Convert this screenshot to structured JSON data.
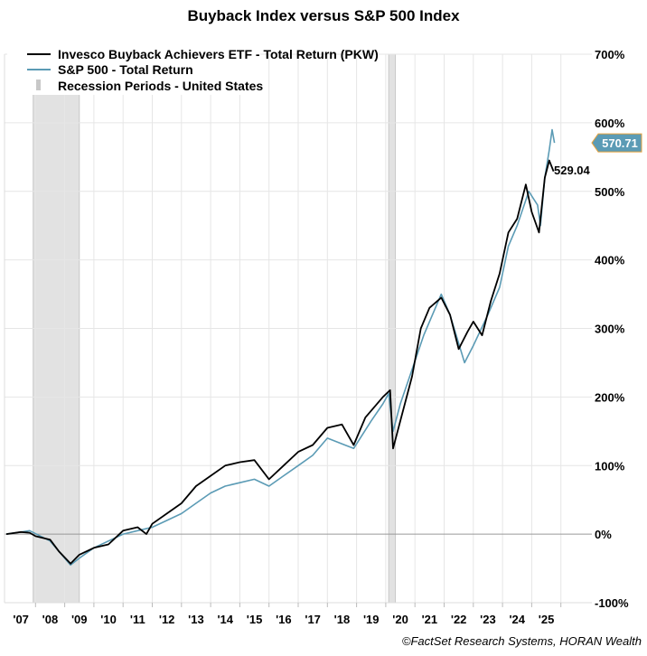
{
  "chart_data": {
    "type": "line",
    "title": "Buyback Index versus S&P 500 Index",
    "source": "©FactSet Research Systems, HORAN Wealth",
    "xlabel": "",
    "ylabel": "",
    "xlim": [
      2007,
      2027
    ],
    "ylim": [
      -100,
      700
    ],
    "y_ticks": [
      "700%",
      "600%",
      "500%",
      "400%",
      "300%",
      "200%",
      "100%",
      "0%",
      "-100%"
    ],
    "y_tick_values": [
      700,
      600,
      500,
      400,
      300,
      200,
      100,
      0,
      -100
    ],
    "x_tick_labels": [
      "'07",
      "'08",
      "'09",
      "'10",
      "'11",
      "'12",
      "'13",
      "'14",
      "'15",
      "'16",
      "'17",
      "'18",
      "'19",
      "'20",
      "'21",
      "'22",
      "'23",
      "'24",
      "'25"
    ],
    "grid": true,
    "legend_position": "top-left",
    "recessions": [
      {
        "name": "Recession Periods - United States",
        "start": 2007.92,
        "end": 2009.5
      },
      {
        "name": "Recession Periods - United States",
        "start": 2020.1,
        "end": 2020.33
      }
    ],
    "legend": [
      {
        "label": "Invesco Buyback Achievers ETF - Total Return (PKW)",
        "color": "#000000",
        "kind": "line"
      },
      {
        "label": "S&P 500 - Total Return",
        "color": "#5b9bb5",
        "kind": "line"
      },
      {
        "label": "Recession Periods - United States",
        "color": "#c8c8c8",
        "kind": "bar"
      }
    ],
    "series": [
      {
        "name": "Invesco Buyback Achievers ETF - Total Return (PKW)",
        "color": "#000000",
        "end_label": "529.04",
        "x": [
          2007.0,
          2007.5,
          2007.8,
          2008.0,
          2008.5,
          2008.8,
          2009.2,
          2009.5,
          2010.0,
          2010.5,
          2011.0,
          2011.5,
          2011.8,
          2012.0,
          2012.5,
          2013.0,
          2013.5,
          2014.0,
          2014.5,
          2015.0,
          2015.5,
          2016.0,
          2016.5,
          2017.0,
          2017.5,
          2018.0,
          2018.5,
          2018.9,
          2019.3,
          2019.9,
          2020.15,
          2020.25,
          2020.5,
          2020.9,
          2021.2,
          2021.5,
          2021.9,
          2022.2,
          2022.5,
          2022.8,
          2023.0,
          2023.3,
          2023.6,
          2023.9,
          2024.2,
          2024.5,
          2024.8,
          2025.0,
          2025.25,
          2025.45,
          2025.6,
          2025.75
        ],
        "y": [
          0,
          3,
          2,
          -3,
          -8,
          -25,
          -43,
          -30,
          -20,
          -15,
          5,
          10,
          0,
          15,
          30,
          45,
          70,
          85,
          100,
          105,
          108,
          80,
          100,
          120,
          130,
          155,
          160,
          130,
          170,
          200,
          210,
          125,
          165,
          230,
          300,
          330,
          345,
          320,
          270,
          295,
          310,
          290,
          340,
          380,
          440,
          460,
          510,
          470,
          440,
          520,
          545,
          529.04
        ]
      },
      {
        "name": "S&P 500 - Total Return",
        "color": "#5b9bb5",
        "end_label": "570.71",
        "x": [
          2007.0,
          2007.5,
          2007.8,
          2008.5,
          2009.2,
          2009.5,
          2010.0,
          2011.0,
          2011.5,
          2012.0,
          2012.5,
          2013.0,
          2013.5,
          2014.0,
          2014.5,
          2015.0,
          2015.5,
          2016.0,
          2016.5,
          2017.0,
          2017.5,
          2018.0,
          2018.9,
          2019.5,
          2019.9,
          2020.1,
          2020.25,
          2020.5,
          2020.9,
          2021.3,
          2021.9,
          2022.2,
          2022.7,
          2023.0,
          2023.5,
          2023.9,
          2024.2,
          2024.5,
          2024.9,
          2025.2,
          2025.3,
          2025.45,
          2025.6,
          2025.7,
          2025.78
        ],
        "y": [
          0,
          3,
          5,
          -10,
          -45,
          -35,
          -20,
          0,
          5,
          10,
          20,
          30,
          45,
          60,
          70,
          75,
          80,
          70,
          85,
          100,
          115,
          140,
          125,
          165,
          190,
          205,
          150,
          190,
          240,
          290,
          350,
          320,
          250,
          275,
          320,
          360,
          420,
          450,
          500,
          480,
          450,
          520,
          560,
          590,
          570.71
        ]
      }
    ]
  }
}
